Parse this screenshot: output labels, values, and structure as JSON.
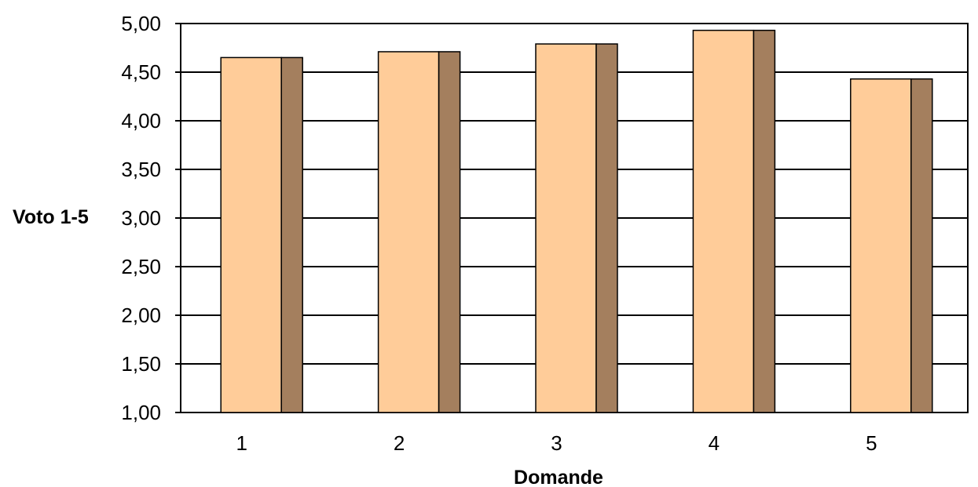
{
  "chart_data": {
    "type": "bar",
    "categories": [
      "1",
      "2",
      "3",
      "4",
      "5"
    ],
    "series": [
      {
        "values": [
          4.65,
          4.71,
          4.79,
          4.93,
          4.43
        ]
      }
    ],
    "xlabel": "Domande",
    "ylabel": "Voto 1-5",
    "ylim": [
      1.0,
      5.0
    ],
    "yticks": [
      "1,00",
      "1,50",
      "2,00",
      "2,50",
      "3,00",
      "3,50",
      "4,00",
      "4,50",
      "5,00"
    ],
    "grid": true,
    "legend": "none",
    "colors": {
      "bar_front": "#FFCC99",
      "bar_side": "#A47F5E",
      "grid": "#000000",
      "outline": "#000000"
    }
  }
}
